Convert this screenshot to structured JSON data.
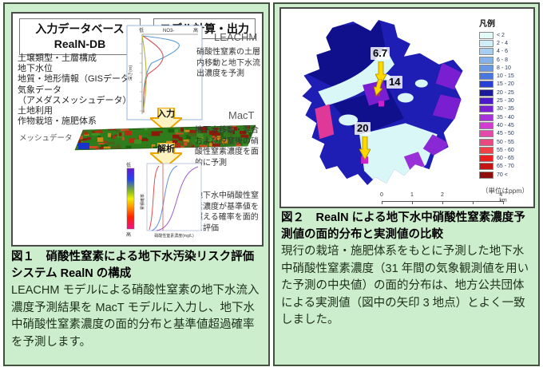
{
  "panel1": {
    "db_box_line1": "入力データベース",
    "db_box_line2": "RealN-DB",
    "model_box": "モデル計算・出力",
    "inputs": [
      "土壌類型・土層構成",
      "地下水位",
      "地質・地形情報（GISデータ）",
      "気象データ",
      "（アメダスメッシュデータ）",
      "土地利用",
      "作物栽培・施肥体系"
    ],
    "mesh_label": "メッシュデータ",
    "arrow_input": "入力",
    "arrow_analysis": "解析",
    "leachm_name": "LEACHM",
    "leachm_desc": "硝酸性窒素の土層内移動と地下水流出濃度を予測",
    "mact_name": "MacT",
    "mact_desc": "地下水移動・混合および脱窒後の硝酸性窒素濃度を面的に予測",
    "result_desc": "地下水中硝酸性窒素濃度が基準値を超える確率を面的に評価",
    "chart_top": {
      "left": "低",
      "center": "NO3-",
      "right": "高",
      "ylabel": "深さ(m)"
    },
    "chart_bottom": {
      "bar_top": "低",
      "bar_bottom": "高",
      "ylabel": "累積確率",
      "xlabel": "硝酸性窒素濃度(mg/L)"
    },
    "caption_title": "図１　硝酸性窒素による地下水汚染リスク評価システム RealN の構成",
    "caption_body": "LEACHM モデルによる硝酸性窒素の地下水流入濃度予測結果を MacT モデルに入力し、地下水中硝酸性窒素濃度の面的分布と基準値超過確率を予測します。"
  },
  "panel2": {
    "legend_title": "凡例",
    "legend": [
      {
        "label": "< 2",
        "color": "#e2fbf8"
      },
      {
        "label": "2 - 4",
        "color": "#cfeef8"
      },
      {
        "label": "4 - 6",
        "color": "#a6cdf0"
      },
      {
        "label": "6 - 8",
        "color": "#86b2ea"
      },
      {
        "label": "8 - 10",
        "color": "#6897e4"
      },
      {
        "label": "10 - 15",
        "color": "#4876e0"
      },
      {
        "label": "15 - 20",
        "color": "#2840d4"
      },
      {
        "label": "20 - 25",
        "color": "#1a1a9a"
      },
      {
        "label": "25 - 30",
        "color": "#4c1ac8"
      },
      {
        "label": "30 - 35",
        "color": "#7a22d2"
      },
      {
        "label": "35 - 40",
        "color": "#a832da"
      },
      {
        "label": "40 - 45",
        "color": "#d23cd2"
      },
      {
        "label": "45 - 50",
        "color": "#e44aaa"
      },
      {
        "label": "50 - 55",
        "color": "#ea4880"
      },
      {
        "label": "55 - 60",
        "color": "#f04048"
      },
      {
        "label": "60 - 65",
        "color": "#ea2020"
      },
      {
        "label": "65 - 70",
        "color": "#c41414"
      },
      {
        "label": "70 <",
        "color": "#8e0e0e"
      }
    ],
    "unit_note": "（単位はppm）",
    "scale_ticks": [
      "0",
      "1",
      "2",
      "4 km"
    ],
    "measurements": [
      "6.7",
      "14",
      "20"
    ],
    "caption_title": "図２　RealN による地下水中硝酸性窒素濃度予測値の面的分布と実測値の比較",
    "caption_body": "現行の栽培・施肥体系をもとに予測した地下水中硝酸性窒素濃度（31 年間の気象観測値を用いた予測の中央値）の面的分布は、地方公共団体による実測値（図中の矢印 3 地点）とよく一致しました。"
  }
}
